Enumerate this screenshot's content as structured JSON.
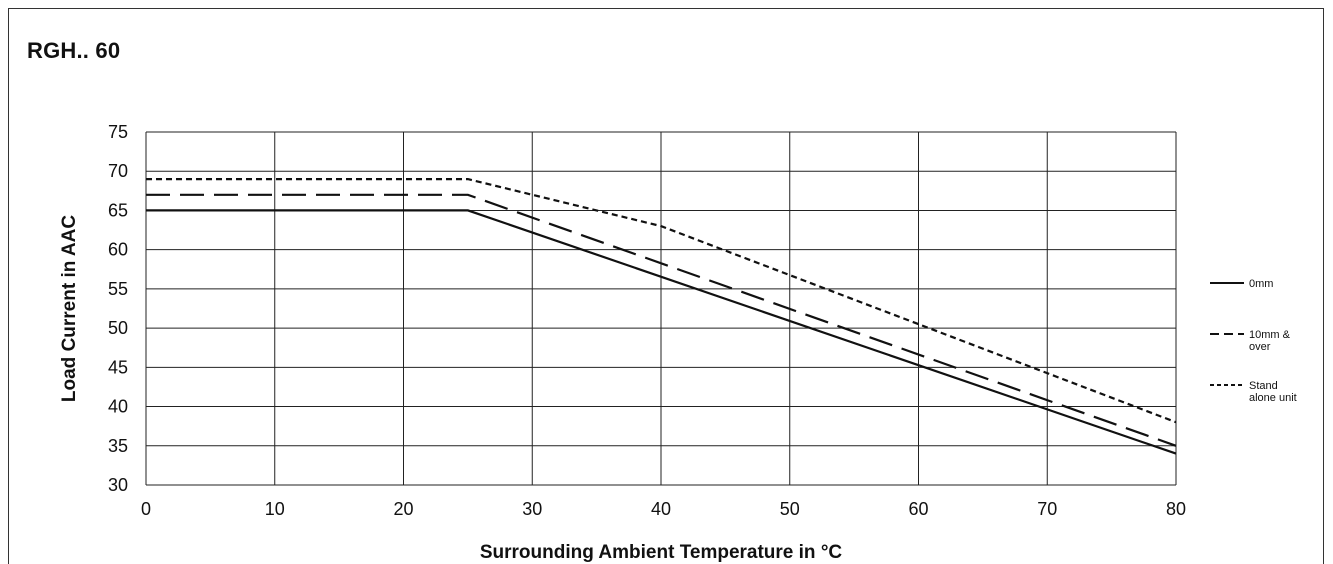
{
  "chart_title": "RGH.. 60",
  "chart_data": {
    "type": "line",
    "title": "RGH.. 60",
    "xlabel": "Surrounding Ambient Temperature in °C",
    "ylabel": "Load Current in AAC",
    "xlim": [
      0,
      80
    ],
    "ylim": [
      30,
      75
    ],
    "x_ticks": [
      0,
      10,
      20,
      30,
      40,
      50,
      60,
      70,
      80
    ],
    "y_ticks": [
      30,
      35,
      40,
      45,
      50,
      55,
      60,
      65,
      70,
      75
    ],
    "grid": true,
    "legend_position": "right",
    "series": [
      {
        "name": "0mm",
        "style": "solid",
        "points": [
          [
            0,
            65
          ],
          [
            25,
            65
          ],
          [
            80,
            34
          ]
        ]
      },
      {
        "name": "10mm & over",
        "style": "dashed",
        "points": [
          [
            0,
            67
          ],
          [
            25,
            67
          ],
          [
            80,
            35
          ]
        ]
      },
      {
        "name": "Stand alone unit",
        "style": "dotted",
        "points": [
          [
            0,
            69
          ],
          [
            25,
            69
          ],
          [
            40,
            63
          ],
          [
            80,
            38
          ]
        ]
      }
    ]
  },
  "legend": [
    {
      "lines": [
        "0mm"
      ],
      "style": "solid"
    },
    {
      "lines": [
        "10mm &",
        "over"
      ],
      "style": "dashed"
    },
    {
      "lines": [
        "Stand",
        "alone unit"
      ],
      "style": "dotted"
    }
  ],
  "colors": {
    "line": "#111111",
    "grid": "#222222"
  }
}
